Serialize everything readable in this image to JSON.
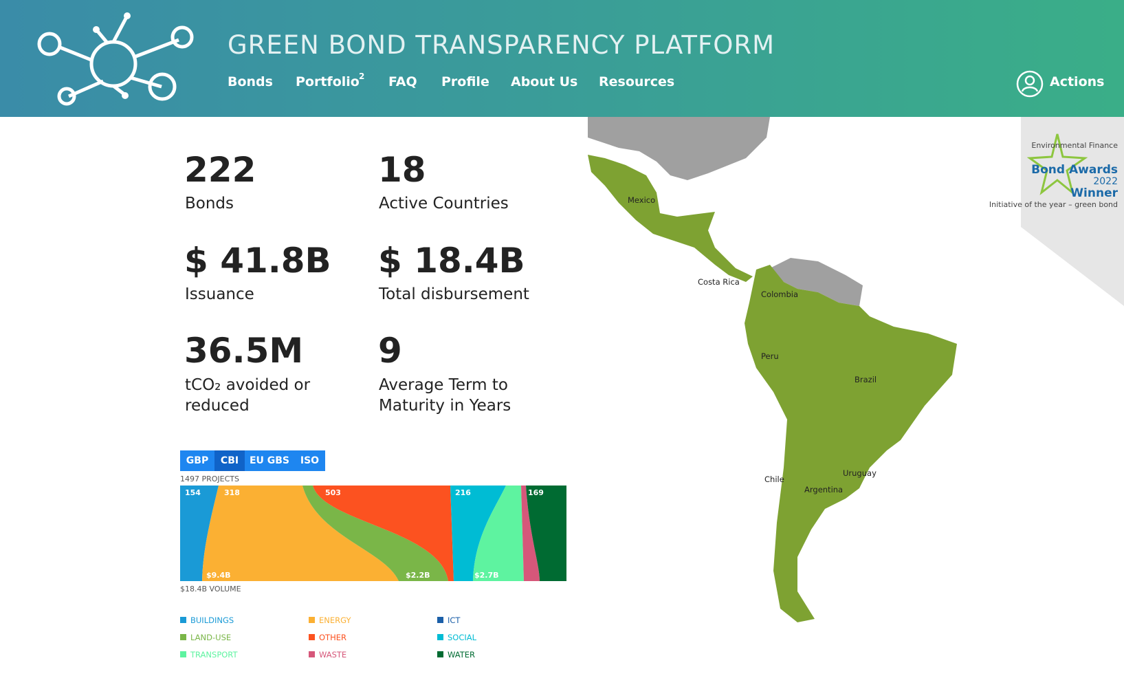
{
  "header": {
    "title": "GREEN BOND TRANSPARENCY PLATFORM",
    "nav": [
      "Bonds",
      "Portfolio",
      "FAQ",
      "Profile",
      "About Us",
      "Resources"
    ],
    "portfolio_badge": "2",
    "actions": "Actions"
  },
  "stats": [
    {
      "value": "222",
      "label": "Bonds"
    },
    {
      "value": "18",
      "label": "Active Countries"
    },
    {
      "value": "$ 41.8B",
      "label": "Issuance"
    },
    {
      "value": "$ 18.4B",
      "label": "Total disbursement"
    },
    {
      "value": "36.5M",
      "label": "tCO₂ avoided or reduced"
    },
    {
      "value": "9",
      "label": "Average Term to Maturity in Years"
    }
  ],
  "chart": {
    "tabs": [
      "GBP",
      "CBI",
      "EU GBS",
      "ISO"
    ],
    "projects": "1497 PROJECTS",
    "volume": "$18.4B VOLUME",
    "top_labels": [
      "154",
      "318",
      "503",
      "216",
      "169"
    ],
    "bottom_labels": [
      "$9.4B",
      "$2.2B",
      "$2.7B"
    ],
    "legend": [
      {
        "name": "BUILDINGS",
        "color": "#1a9ad6"
      },
      {
        "name": "ENERGY",
        "color": "#fbb033"
      },
      {
        "name": "ICT",
        "color": "#1b5fa8"
      },
      {
        "name": "LAND-USE",
        "color": "#7ab648"
      },
      {
        "name": "OTHER",
        "color": "#fc5220"
      },
      {
        "name": "SOCIAL",
        "color": "#00bcd4"
      },
      {
        "name": "TRANSPORT",
        "color": "#5ef3a0"
      },
      {
        "name": "WASTE",
        "color": "#d6577a"
      },
      {
        "name": "WATER",
        "color": "#006b32"
      }
    ]
  },
  "map": {
    "labels": [
      "Mexico",
      "Costa Rica",
      "Colombia",
      "Peru",
      "Brazil",
      "Chile",
      "Argentina",
      "Uruguay"
    ]
  },
  "award": {
    "org": "Environmental Finance",
    "name": "Bond Awards",
    "year": "2022",
    "result": "Winner",
    "category": "Initiative of the year – green bond"
  }
}
